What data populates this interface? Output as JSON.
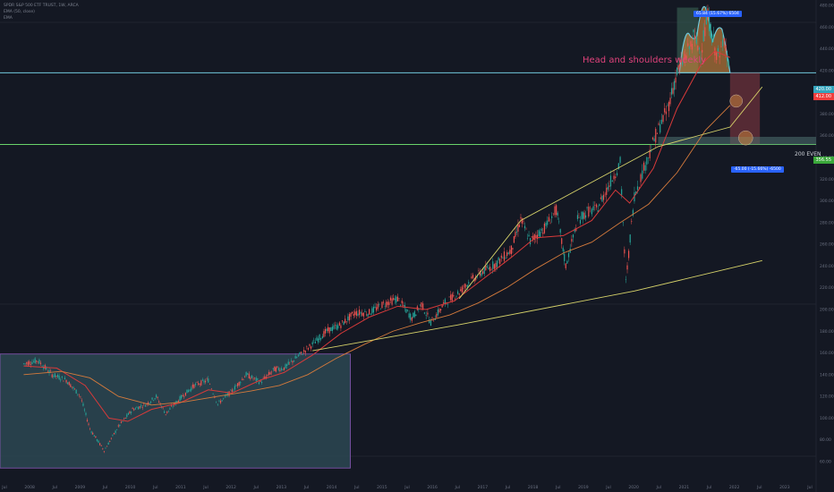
{
  "header": {
    "symbol_line": "SPDR S&P 500 ETF TRUST, 1W, ARCA",
    "indicator_1": "EMA (50, close)",
    "indicator_2": "EMA"
  },
  "annotation": {
    "title": "Head and shoulders weekly",
    "measure_up": "65.84 (15.67%) 6504",
    "measure_down": "-65.00 (-15.66%) -6500",
    "label_200": "200 EVEN",
    "price_top": "420.00",
    "price_red": "412.00",
    "price_bottom": "356.55"
  },
  "colors": {
    "background": "#141823",
    "candle_up": "#26a69a",
    "candle_down": "#ef5350",
    "ema_fast": "#d83a3a",
    "ema_slow": "#d47a3c",
    "trendline": "#d7d36a",
    "resistance": "#6fc9db",
    "support": "#6ad46a",
    "range_box": "#2f4e5a",
    "range_border": "#8a58b8",
    "head_shoulders_fill": "#d48a3c",
    "badge_blue": "#2962ff"
  },
  "chart_data": {
    "type": "candlestick",
    "title": "SPDR S&P 500 ETF TRUST, 1W, ARCA",
    "xlabel": "",
    "ylabel": "",
    "x_ticks": [
      "Jul",
      "2008",
      "Jul",
      "2009",
      "Jul",
      "2010",
      "Jul",
      "2011",
      "Jul",
      "2012",
      "Jul",
      "2013",
      "Jul",
      "2014",
      "Jul",
      "2015",
      "Jul",
      "2016",
      "Jul",
      "2017",
      "Jul",
      "2018",
      "Jul",
      "2019",
      "Jul",
      "2020",
      "Jul",
      "2021",
      "Jul",
      "2022",
      "Jul",
      "2023",
      "Jul"
    ],
    "y_ticks": [
      480,
      460,
      440,
      420,
      400,
      380,
      360,
      340,
      320,
      300,
      280,
      260,
      240,
      220,
      200,
      180,
      160,
      140,
      120,
      100,
      80,
      60
    ],
    "ylim": [
      55,
      485
    ],
    "price_series": [
      [
        2007.5,
        150
      ],
      [
        2007.8,
        153
      ],
      [
        2008.1,
        140
      ],
      [
        2008.4,
        135
      ],
      [
        2008.7,
        120
      ],
      [
        2008.9,
        90
      ],
      [
        2009.2,
        70
      ],
      [
        2009.5,
        92
      ],
      [
        2009.8,
        108
      ],
      [
        2010.1,
        113
      ],
      [
        2010.3,
        120
      ],
      [
        2010.5,
        104
      ],
      [
        2010.8,
        118
      ],
      [
        2011.1,
        130
      ],
      [
        2011.4,
        135
      ],
      [
        2011.6,
        113
      ],
      [
        2011.9,
        125
      ],
      [
        2012.2,
        140
      ],
      [
        2012.5,
        133
      ],
      [
        2012.8,
        145
      ],
      [
        2013.0,
        146
      ],
      [
        2013.3,
        157
      ],
      [
        2013.6,
        168
      ],
      [
        2013.9,
        180
      ],
      [
        2014.2,
        186
      ],
      [
        2014.5,
        197
      ],
      [
        2014.8,
        197
      ],
      [
        2015.1,
        205
      ],
      [
        2015.4,
        210
      ],
      [
        2015.7,
        192
      ],
      [
        2015.9,
        205
      ],
      [
        2016.1,
        188
      ],
      [
        2016.4,
        206
      ],
      [
        2016.7,
        216
      ],
      [
        2016.9,
        225
      ],
      [
        2017.2,
        235
      ],
      [
        2017.5,
        243
      ],
      [
        2017.8,
        255
      ],
      [
        2018.0,
        283
      ],
      [
        2018.2,
        263
      ],
      [
        2018.5,
        275
      ],
      [
        2018.75,
        292
      ],
      [
        2018.95,
        240
      ],
      [
        2019.2,
        282
      ],
      [
        2019.4,
        290
      ],
      [
        2019.6,
        292
      ],
      [
        2019.9,
        318
      ],
      [
        2020.1,
        335
      ],
      [
        2020.22,
        225
      ],
      [
        2020.4,
        305
      ],
      [
        2020.6,
        330
      ],
      [
        2020.85,
        360
      ],
      [
        2021.1,
        385
      ],
      [
        2021.3,
        418
      ],
      [
        2021.5,
        435
      ],
      [
        2021.65,
        450
      ],
      [
        2021.8,
        438
      ],
      [
        2021.95,
        470
      ],
      [
        2022.1,
        440
      ],
      [
        2022.2,
        430
      ],
      [
        2022.3,
        455
      ],
      [
        2022.42,
        412
      ]
    ],
    "ema_fast": [
      [
        2007.5,
        148
      ],
      [
        2008.2,
        146
      ],
      [
        2008.8,
        130
      ],
      [
        2009.3,
        100
      ],
      [
        2009.7,
        97
      ],
      [
        2010.2,
        108
      ],
      [
        2010.8,
        114
      ],
      [
        2011.4,
        126
      ],
      [
        2011.9,
        123
      ],
      [
        2012.5,
        135
      ],
      [
        2013.0,
        142
      ],
      [
        2013.6,
        158
      ],
      [
        2014.2,
        178
      ],
      [
        2014.8,
        193
      ],
      [
        2015.4,
        203
      ],
      [
        2016.0,
        200
      ],
      [
        2016.6,
        208
      ],
      [
        2017.2,
        228
      ],
      [
        2017.8,
        248
      ],
      [
        2018.3,
        266
      ],
      [
        2018.9,
        268
      ],
      [
        2019.5,
        282
      ],
      [
        2020.0,
        310
      ],
      [
        2020.3,
        298
      ],
      [
        2020.8,
        330
      ],
      [
        2021.3,
        385
      ],
      [
        2021.8,
        425
      ],
      [
        2022.1,
        438
      ],
      [
        2022.42,
        432
      ]
    ],
    "ema_slow": [
      [
        2007.5,
        140
      ],
      [
        2008.3,
        143
      ],
      [
        2008.9,
        137
      ],
      [
        2009.5,
        120
      ],
      [
        2010.2,
        112
      ],
      [
        2010.9,
        115
      ],
      [
        2011.6,
        120
      ],
      [
        2012.3,
        125
      ],
      [
        2012.9,
        130
      ],
      [
        2013.5,
        140
      ],
      [
        2014.1,
        155
      ],
      [
        2014.7,
        168
      ],
      [
        2015.3,
        180
      ],
      [
        2015.9,
        188
      ],
      [
        2016.5,
        195
      ],
      [
        2017.1,
        206
      ],
      [
        2017.7,
        220
      ],
      [
        2018.3,
        237
      ],
      [
        2018.9,
        252
      ],
      [
        2019.5,
        262
      ],
      [
        2020.1,
        280
      ],
      [
        2020.7,
        297
      ],
      [
        2021.3,
        326
      ],
      [
        2021.9,
        365
      ],
      [
        2022.42,
        388
      ]
    ],
    "trend_upper": [
      [
        2016.7,
        210
      ],
      [
        2018.0,
        282
      ],
      [
        2020.9,
        350
      ],
      [
        2022.42,
        368
      ],
      [
        2023.1,
        405
      ]
    ],
    "trend_lower": [
      [
        2013.6,
        162
      ],
      [
        2016.7,
        186
      ],
      [
        2020.4,
        217
      ],
      [
        2023.1,
        245
      ]
    ],
    "resistance_level": 418,
    "support_level": 352,
    "range_box": {
      "x0": 2007.0,
      "x1": 2014.4,
      "y0": 54,
      "y1": 159
    },
    "head_shoulders": {
      "left_shoulder": 454,
      "head": 478,
      "right_shoulder": 458,
      "neckline": 418
    },
    "target_up_pct": 15.67,
    "target_down_pct": -15.66
  }
}
